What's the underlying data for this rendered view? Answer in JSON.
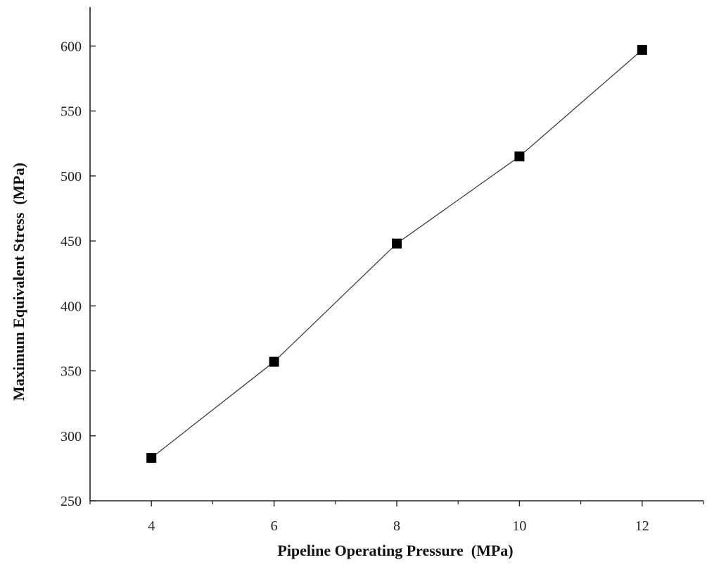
{
  "chart_data": {
    "type": "line",
    "title": "",
    "xlabel": "Pipeline Operating Pressure  (MPa)",
    "ylabel": "Maximum Equivalent Stress  (MPa)",
    "xlim": [
      3,
      13
    ],
    "ylim": [
      250,
      630
    ],
    "x_ticks": [
      4,
      6,
      8,
      10,
      12
    ],
    "x_minor_ticks": [
      3,
      5,
      7,
      9,
      11,
      13
    ],
    "y_ticks": [
      250,
      300,
      350,
      400,
      450,
      500,
      550,
      600
    ],
    "grid": false,
    "marker": "square",
    "series": [
      {
        "name": "Maximum Equivalent Stress",
        "x": [
          4,
          6,
          8,
          10,
          12
        ],
        "y": [
          283,
          357,
          448,
          515,
          597
        ]
      }
    ],
    "colors": {
      "axis": "#222222",
      "line": "#333333",
      "marker": "#000000"
    }
  }
}
